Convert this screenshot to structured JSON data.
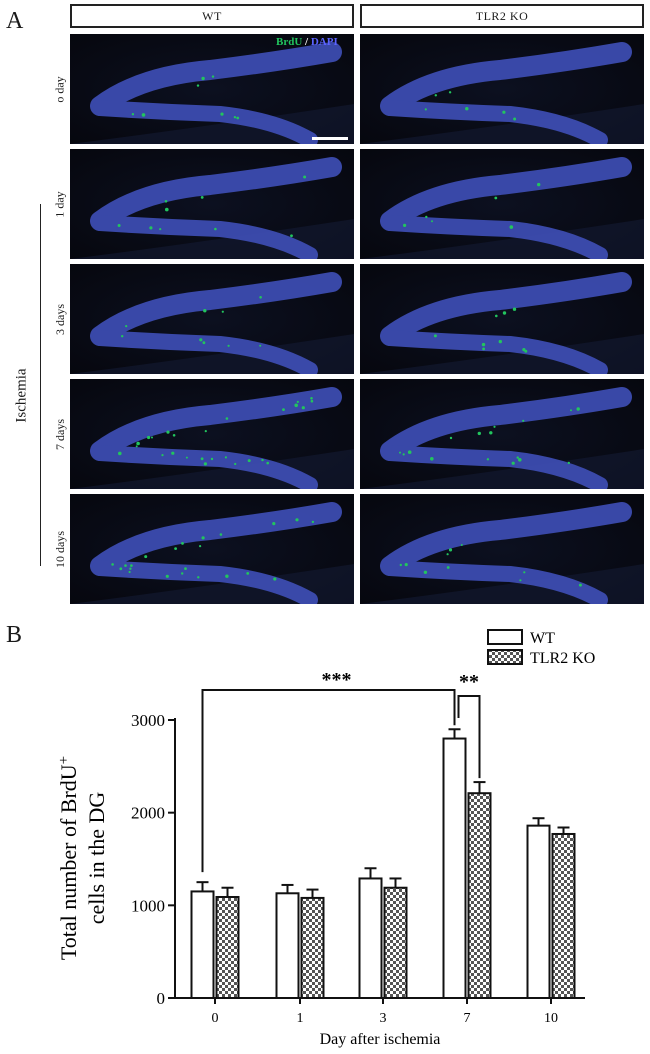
{
  "figure": {
    "panel_a_letter": "A",
    "panel_b_letter": "B",
    "columns": [
      "WT",
      "TLR2 KO"
    ],
    "rows": [
      "o day",
      "1 day",
      "3 days",
      "7 days",
      "10 days"
    ],
    "group_label": "Ischemia",
    "stain": {
      "brdu": "BrdU",
      "slash": "/",
      "dapi": "DAPI"
    },
    "colors": {
      "brdu": "#22c55e",
      "dapi": "#5b63ff",
      "tissue": "#3f4fb8"
    }
  },
  "chart_data": {
    "type": "bar",
    "categories": [
      "0",
      "1",
      "3",
      "7",
      "10"
    ],
    "series": [
      {
        "name": "WT",
        "values": [
          1150,
          1130,
          1290,
          2800,
          1860
        ],
        "errors": [
          100,
          90,
          110,
          100,
          80
        ],
        "fill": "white"
      },
      {
        "name": "TLR2 KO",
        "values": [
          1090,
          1080,
          1190,
          2210,
          1770
        ],
        "errors": [
          100,
          90,
          100,
          120,
          70
        ],
        "fill": "checker"
      }
    ],
    "xlabel": "Day after ischemia",
    "ylabel_line1": "Total number of BrdU",
    "ylabel_sup": "+",
    "ylabel_line2": "cells in the DG",
    "ylim": [
      0,
      3000
    ],
    "yticks": [
      0,
      1000,
      2000,
      3000
    ],
    "significance": [
      {
        "label": "***",
        "from": "WT day 0",
        "to": "WT day 7"
      },
      {
        "label": "**",
        "from": "WT day 7",
        "to": "TLR2 KO day 7"
      }
    ],
    "legend_position": "top-right"
  }
}
